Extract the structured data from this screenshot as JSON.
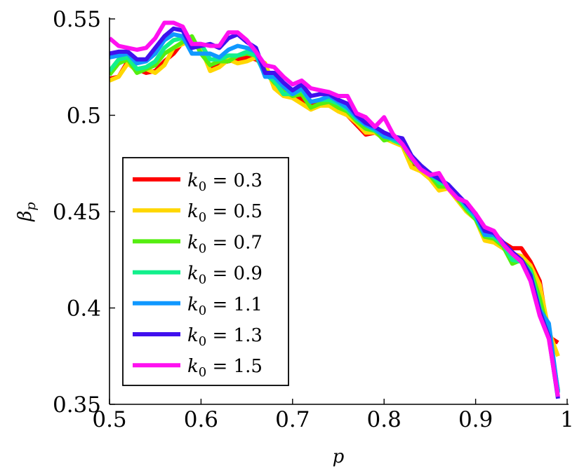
{
  "chart_data": {
    "type": "line",
    "xlabel": "p",
    "ylabel": "β_p",
    "xlim": [
      0.5,
      1.0
    ],
    "ylim": [
      0.35,
      0.55
    ],
    "x_ticks": [
      0.5,
      0.6,
      0.7,
      0.8,
      0.9,
      1.0
    ],
    "x_tick_labels": [
      "0.5",
      "0.6",
      "0.7",
      "0.8",
      "0.9",
      "1"
    ],
    "y_ticks": [
      0.35,
      0.4,
      0.45,
      0.5,
      0.55
    ],
    "y_tick_labels": [
      "0.35",
      "0.4",
      "0.45",
      "0.5",
      "0.55"
    ],
    "grid": false,
    "legend_position": "lower-left",
    "x": [
      0.5,
      0.51,
      0.52,
      0.53,
      0.54,
      0.55,
      0.56,
      0.57,
      0.58,
      0.59,
      0.6,
      0.61,
      0.62,
      0.63,
      0.64,
      0.65,
      0.66,
      0.67,
      0.68,
      0.69,
      0.7,
      0.71,
      0.72,
      0.73,
      0.74,
      0.75,
      0.76,
      0.77,
      0.78,
      0.79,
      0.8,
      0.81,
      0.82,
      0.83,
      0.84,
      0.85,
      0.86,
      0.87,
      0.88,
      0.89,
      0.9,
      0.91,
      0.92,
      0.93,
      0.94,
      0.95,
      0.96,
      0.97,
      0.98,
      0.99
    ],
    "series": [
      {
        "name": "k_0 = 0.3",
        "label_base": "k",
        "label_sub": "0",
        "label_rest": " = 0.3",
        "color": "#ff0000",
        "values": [
          0.519,
          0.52,
          0.528,
          0.524,
          0.522,
          0.523,
          0.528,
          0.532,
          0.538,
          0.539,
          0.535,
          0.524,
          0.527,
          0.528,
          0.529,
          0.53,
          0.529,
          0.526,
          0.516,
          0.511,
          0.512,
          0.508,
          0.505,
          0.506,
          0.506,
          0.503,
          0.5,
          0.495,
          0.49,
          0.491,
          0.489,
          0.488,
          0.484,
          0.476,
          0.471,
          0.468,
          0.464,
          0.463,
          0.458,
          0.452,
          0.447,
          0.438,
          0.437,
          0.434,
          0.431,
          0.431,
          0.424,
          0.414,
          0.385,
          0.382
        ]
      },
      {
        "name": "k_0 = 0.5",
        "label_base": "k",
        "label_sub": "0",
        "label_rest": " = 0.5",
        "color": "#ffd700",
        "values": [
          0.518,
          0.52,
          0.527,
          0.523,
          0.524,
          0.522,
          0.526,
          0.535,
          0.537,
          0.539,
          0.535,
          0.523,
          0.525,
          0.529,
          0.527,
          0.528,
          0.53,
          0.527,
          0.514,
          0.51,
          0.509,
          0.506,
          0.503,
          0.505,
          0.505,
          0.502,
          0.5,
          0.496,
          0.491,
          0.491,
          0.488,
          0.486,
          0.484,
          0.473,
          0.471,
          0.467,
          0.461,
          0.462,
          0.456,
          0.45,
          0.446,
          0.435,
          0.434,
          0.431,
          0.428,
          0.427,
          0.422,
          0.412,
          0.388,
          0.375
        ]
      },
      {
        "name": "k_0 = 0.7",
        "label_base": "k",
        "label_sub": "0",
        "label_rest": " = 0.7",
        "color": "#55ee10",
        "values": [
          0.521,
          0.527,
          0.529,
          0.522,
          0.524,
          0.526,
          0.532,
          0.535,
          0.538,
          0.541,
          0.532,
          0.526,
          0.528,
          0.528,
          0.531,
          0.532,
          0.531,
          0.523,
          0.517,
          0.513,
          0.51,
          0.511,
          0.504,
          0.506,
          0.507,
          0.504,
          0.502,
          0.497,
          0.493,
          0.492,
          0.487,
          0.488,
          0.485,
          0.477,
          0.472,
          0.469,
          0.463,
          0.463,
          0.457,
          0.451,
          0.446,
          0.437,
          0.436,
          0.432,
          0.423,
          0.425,
          0.42,
          0.405,
          0.386,
          0.357
        ]
      },
      {
        "name": "k_0 = 0.9",
        "label_base": "k",
        "label_sub": "0",
        "label_rest": " = 0.9",
        "color": "#12f08c",
        "values": [
          0.523,
          0.529,
          0.53,
          0.524,
          0.525,
          0.528,
          0.535,
          0.539,
          0.54,
          0.537,
          0.537,
          0.529,
          0.529,
          0.531,
          0.531,
          0.533,
          0.531,
          0.521,
          0.518,
          0.511,
          0.511,
          0.513,
          0.507,
          0.508,
          0.508,
          0.506,
          0.503,
          0.498,
          0.495,
          0.492,
          0.49,
          0.487,
          0.485,
          0.478,
          0.472,
          0.47,
          0.465,
          0.464,
          0.458,
          0.452,
          0.447,
          0.438,
          0.437,
          0.433,
          0.425,
          0.424,
          0.419,
          0.4,
          0.388,
          0.357
        ]
      },
      {
        "name": "k_0 = 1.1",
        "label_base": "k",
        "label_sub": "0",
        "label_rest": " = 1.1",
        "color": "#1098ff",
        "values": [
          0.53,
          0.531,
          0.532,
          0.527,
          0.528,
          0.532,
          0.539,
          0.542,
          0.541,
          0.532,
          0.532,
          0.532,
          0.53,
          0.534,
          0.536,
          0.535,
          0.533,
          0.52,
          0.52,
          0.515,
          0.511,
          0.514,
          0.507,
          0.508,
          0.51,
          0.507,
          0.504,
          0.499,
          0.495,
          0.493,
          0.489,
          0.488,
          0.486,
          0.479,
          0.473,
          0.469,
          0.467,
          0.464,
          0.459,
          0.453,
          0.448,
          0.438,
          0.438,
          0.434,
          0.428,
          0.424,
          0.416,
          0.399,
          0.392,
          0.356
        ]
      },
      {
        "name": "k_0 = 1.3",
        "label_base": "k",
        "label_sub": "0",
        "label_rest": " = 1.3",
        "color": "#4010ee",
        "values": [
          0.532,
          0.533,
          0.533,
          0.529,
          0.529,
          0.535,
          0.541,
          0.545,
          0.544,
          0.535,
          0.536,
          0.537,
          0.535,
          0.54,
          0.542,
          0.538,
          0.535,
          0.522,
          0.522,
          0.517,
          0.513,
          0.516,
          0.51,
          0.511,
          0.511,
          0.508,
          0.506,
          0.5,
          0.496,
          0.494,
          0.491,
          0.489,
          0.488,
          0.479,
          0.474,
          0.47,
          0.467,
          0.464,
          0.459,
          0.454,
          0.449,
          0.44,
          0.439,
          0.434,
          0.429,
          0.425,
          0.417,
          0.398,
          0.385,
          0.353
        ]
      },
      {
        "name": "k_0 = 1.5",
        "label_base": "k",
        "label_sub": "0",
        "label_rest": " = 1.5",
        "color": "#ff10f0",
        "values": [
          0.54,
          0.536,
          0.535,
          0.534,
          0.535,
          0.54,
          0.548,
          0.548,
          0.546,
          0.537,
          0.537,
          0.536,
          0.536,
          0.543,
          0.543,
          0.539,
          0.533,
          0.526,
          0.525,
          0.52,
          0.516,
          0.518,
          0.514,
          0.513,
          0.512,
          0.51,
          0.51,
          0.501,
          0.499,
          0.494,
          0.499,
          0.49,
          0.485,
          0.478,
          0.472,
          0.469,
          0.47,
          0.462,
          0.457,
          0.455,
          0.449,
          0.442,
          0.44,
          0.433,
          0.428,
          0.424,
          0.414,
          0.396,
          0.384,
          0.354
        ]
      }
    ]
  }
}
